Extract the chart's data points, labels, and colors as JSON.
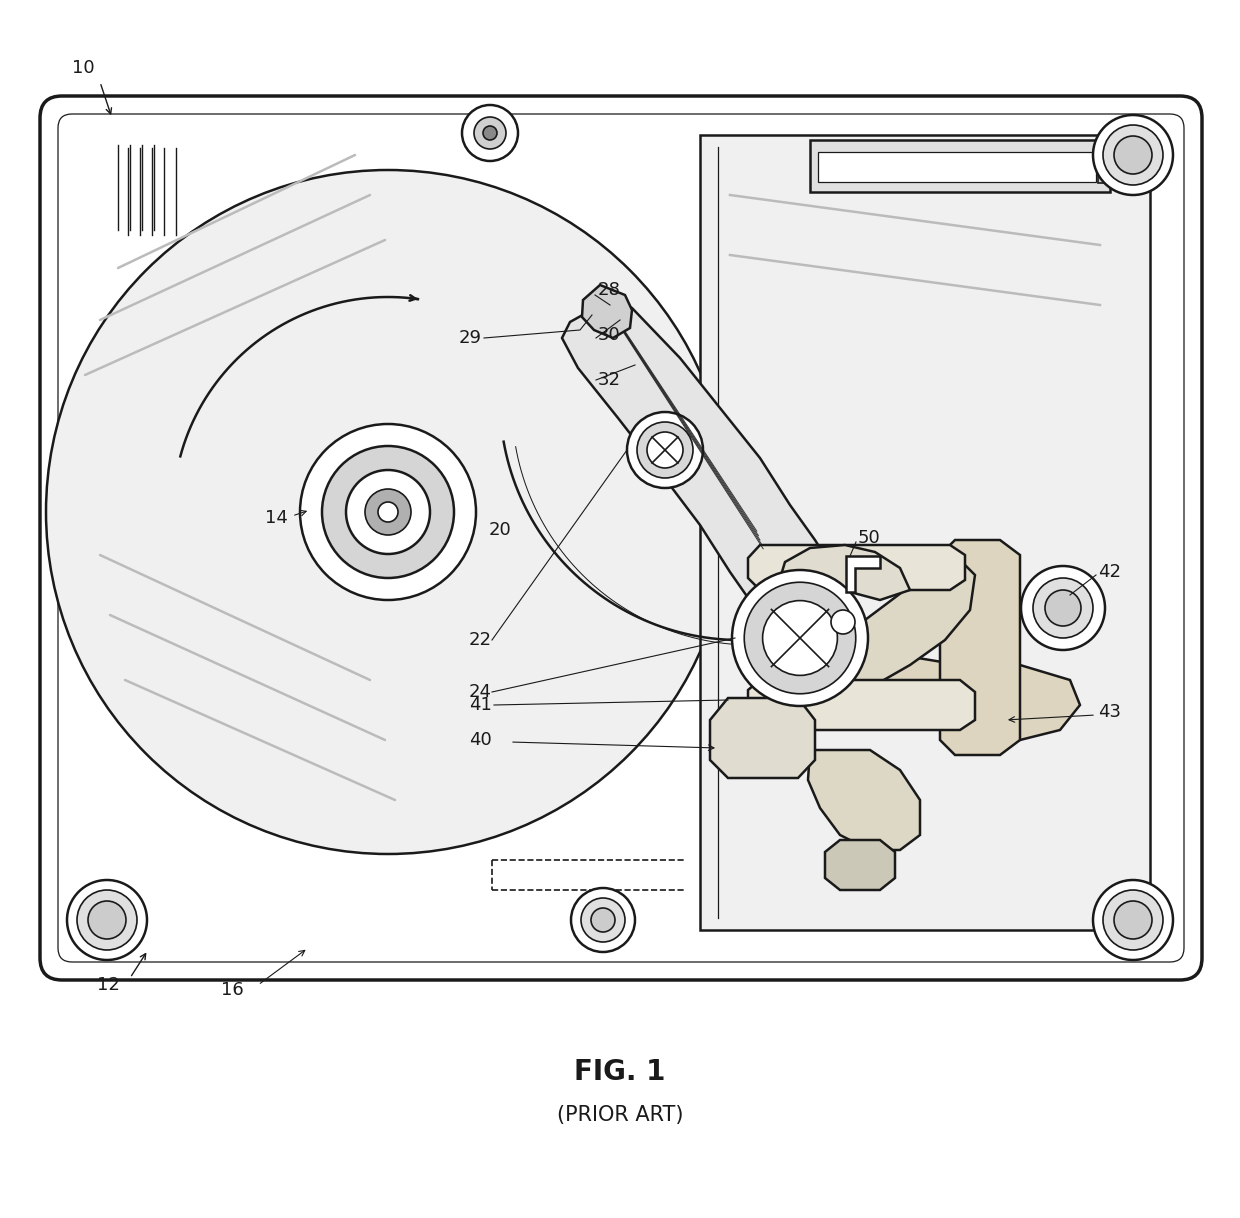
{
  "title": "FIG. 1",
  "subtitle": "(PRIOR ART)",
  "bg_color": "#ffffff",
  "line_color": "#1a1a1a",
  "gray_fill": "#f2f2f2",
  "dark_gray": "#c8c8c8",
  "mid_gray": "#e0e0e0",
  "label_fs": 13
}
